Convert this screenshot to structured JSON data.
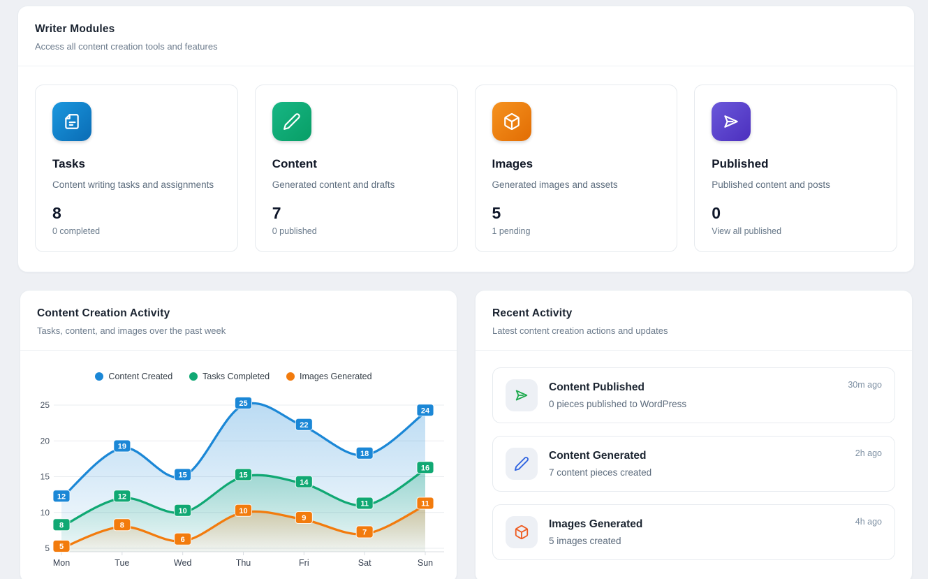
{
  "page": {
    "background": "#eef0f4"
  },
  "writer_modules": {
    "title": "Writer Modules",
    "subtitle": "Access all content creation tools and features",
    "cards": [
      {
        "title": "Tasks",
        "description": "Content writing tasks and assignments",
        "value": "8",
        "footer": "0 completed",
        "icon": "document-icon",
        "gradient_from": "#1a97de",
        "gradient_to": "#0a6cb5"
      },
      {
        "title": "Content",
        "description": "Generated content and drafts",
        "value": "7",
        "footer": "0 published",
        "icon": "pencil-icon",
        "gradient_from": "#17b684",
        "gradient_to": "#089e66"
      },
      {
        "title": "Images",
        "description": "Generated images and assets",
        "value": "5",
        "footer": "1 pending",
        "icon": "cube-icon",
        "gradient_from": "#f5921f",
        "gradient_to": "#e26d03"
      },
      {
        "title": "Published",
        "description": "Published content and posts",
        "value": "0",
        "footer": "View all published",
        "icon": "send-icon",
        "gradient_from": "#6a58da",
        "gradient_to": "#4c2fbe"
      }
    ]
  },
  "activity_chart_panel": {
    "title": "Content Creation Activity",
    "subtitle": "Tasks, content, and images over the past week"
  },
  "chart_data": {
    "type": "line",
    "categories": [
      "Mon",
      "Tue",
      "Wed",
      "Thu",
      "Fri",
      "Sat",
      "Sun"
    ],
    "series": [
      {
        "name": "Content Created",
        "color": "#1b87d6",
        "values": [
          12,
          19,
          15,
          25,
          22,
          18,
          24
        ]
      },
      {
        "name": "Tasks Completed",
        "color": "#10a873",
        "values": [
          8,
          12,
          10,
          15,
          14,
          11,
          16
        ]
      },
      {
        "name": "Images Generated",
        "color": "#f27b0d",
        "values": [
          5,
          8,
          6,
          10,
          9,
          7,
          11
        ]
      }
    ],
    "ylim": [
      5,
      25
    ],
    "yticks": [
      5,
      10,
      15,
      20,
      25
    ],
    "grid": true,
    "smooth": true,
    "area": true,
    "point_labels": true,
    "legend_position": "top"
  },
  "recent_activity": {
    "title": "Recent Activity",
    "subtitle": "Latest content creation actions and updates",
    "items": [
      {
        "title": "Content Published",
        "description": "0 pieces published to WordPress",
        "time": "30m ago",
        "icon": "send-icon",
        "color": "#1ba94c"
      },
      {
        "title": "Content Generated",
        "description": "7 content pieces created",
        "time": "2h ago",
        "icon": "pencil-icon",
        "color": "#2f63e0"
      },
      {
        "title": "Images Generated",
        "description": "5 images created",
        "time": "4h ago",
        "icon": "cube-icon",
        "color": "#ee5b20"
      }
    ]
  }
}
